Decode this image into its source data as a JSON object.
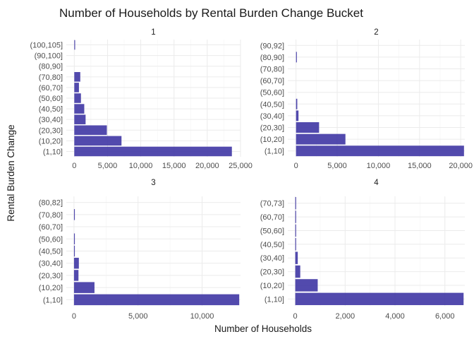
{
  "chart_data": {
    "type": "bar",
    "orientation": "horizontal",
    "title": "Number of Households by Rental Burden Change Bucket",
    "xlabel": "Number of Households",
    "ylabel": "Rental Burden Change",
    "bar_color": "#3f36a4",
    "panels": [
      {
        "strip": "1",
        "xlim": [
          -1200,
          25000
        ],
        "xticks": [
          0,
          5000,
          10000,
          15000,
          20000,
          25000
        ],
        "xtick_labels": [
          "0",
          "5,000",
          "10,000",
          "15,000",
          "20,000",
          "25,000"
        ],
        "categories": [
          "(1,10]",
          "(10,20]",
          "(20,30]",
          "(30,40]",
          "(40,50]",
          "(50,60]",
          "(60,70]",
          "(70,80]",
          "(80,90]",
          "(90,100]",
          "(100,105]"
        ],
        "values": [
          23700,
          7100,
          4900,
          1700,
          1500,
          1000,
          700,
          900,
          0,
          0,
          40
        ]
      },
      {
        "strip": "2",
        "xlim": [
          -1000,
          20500
        ],
        "xticks": [
          0,
          5000,
          10000,
          15000,
          20000
        ],
        "xtick_labels": [
          "0",
          "5,000",
          "10,000",
          "15,000",
          "20,000"
        ],
        "categories": [
          "(1,10]",
          "(10,20]",
          "(20,30]",
          "(30,40]",
          "(40,50]",
          "(50,60]",
          "(60,70]",
          "(70,80]",
          "(80,90]",
          "(90,92]"
        ],
        "values": [
          20400,
          6000,
          2800,
          300,
          150,
          0,
          0,
          0,
          40,
          0
        ]
      },
      {
        "strip": "3",
        "xlim": [
          -600,
          13000
        ],
        "xticks": [
          0,
          5000,
          10000
        ],
        "xtick_labels": [
          "0",
          "5,000",
          "10,000"
        ],
        "categories": [
          "(1,10]",
          "(10,20]",
          "(20,30]",
          "(30,40]",
          "(40,50]",
          "(50,60]",
          "(60,70]",
          "(70,80]",
          "(80,82]"
        ],
        "values": [
          12900,
          1600,
          350,
          380,
          50,
          30,
          0,
          50,
          0
        ]
      },
      {
        "strip": "4",
        "xlim": [
          -300,
          6800
        ],
        "xticks": [
          0,
          2000,
          4000,
          6000
        ],
        "xtick_labels": [
          "0",
          "2,000",
          "4,000",
          "6,000"
        ],
        "categories": [
          "(1,10]",
          "(10,20]",
          "(20,30]",
          "(30,40]",
          "(40,50]",
          "(50,60]",
          "(60,70]",
          "(70,73]"
        ],
        "values": [
          6750,
          900,
          200,
          100,
          30,
          20,
          20,
          10
        ]
      }
    ]
  }
}
